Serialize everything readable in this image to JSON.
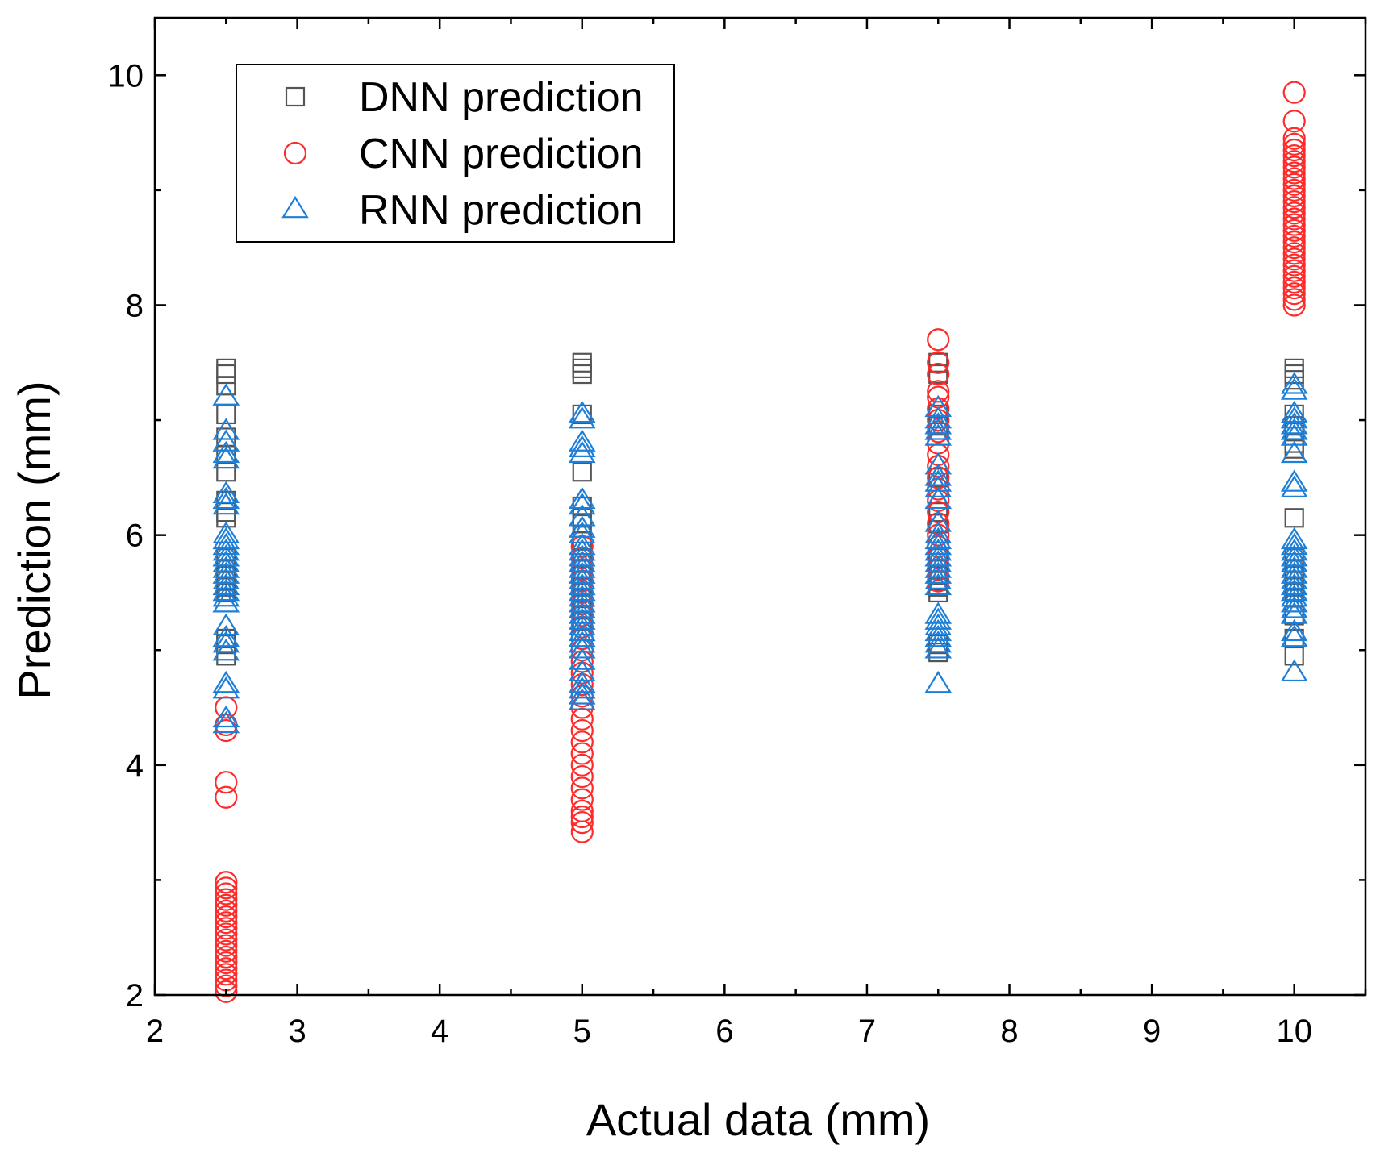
{
  "chart_data": {
    "type": "scatter",
    "xlabel": "Actual data (mm)",
    "ylabel": "Prediction (mm)",
    "xlim": [
      2,
      10.5
    ],
    "ylim": [
      2,
      10.5
    ],
    "x_ticks": [
      "2",
      "3",
      "4",
      "5",
      "6",
      "7",
      "8",
      "9",
      "10"
    ],
    "y_ticks": [
      "2",
      "4",
      "6",
      "8",
      "10"
    ],
    "grid": false,
    "legend_position": "top-left",
    "series": [
      {
        "name": "DNN prediction",
        "marker": "square",
        "color": "#555555",
        "points": [
          {
            "x": 2.5,
            "ys": [
              7.45,
              7.4,
              7.3,
              7.05,
              6.85,
              6.7,
              6.55,
              6.3,
              6.2,
              6.15,
              5.8,
              5.7,
              5.65,
              5.6,
              5.55,
              5.5,
              5.1,
              5.05,
              4.95
            ]
          },
          {
            "x": 5.0,
            "ys": [
              7.5,
              7.45,
              7.4,
              7.05,
              6.55,
              6.25,
              6.15,
              6.1,
              5.95,
              5.8,
              5.7,
              5.65,
              5.6,
              5.55,
              5.5,
              5.45,
              5.35,
              5.25
            ]
          },
          {
            "x": 7.5,
            "ys": [
              7.5,
              7.4,
              7.05,
              6.95,
              6.5,
              6.2,
              6.1,
              5.8,
              5.7,
              5.65,
              5.6,
              5.55,
              5.5,
              5.05,
              4.98
            ]
          },
          {
            "x": 10.0,
            "ys": [
              7.45,
              7.4,
              7.35,
              7.05,
              6.95,
              6.9,
              6.8,
              6.75,
              6.15,
              5.8,
              5.7,
              5.65,
              5.6,
              5.55,
              5.5,
              5.3,
              5.1,
              4.95
            ]
          }
        ]
      },
      {
        "name": "CNN prediction",
        "marker": "circle",
        "color": "#ff2a2a",
        "points": [
          {
            "x": 2.5,
            "ys": [
              4.5,
              4.35,
              4.3,
              3.85,
              3.72,
              2.98,
              2.93,
              2.88,
              2.83,
              2.78,
              2.73,
              2.68,
              2.63,
              2.58,
              2.53,
              2.48,
              2.43,
              2.38,
              2.33,
              2.28,
              2.23,
              2.18,
              2.13,
              2.08,
              2.03
            ]
          },
          {
            "x": 5.0,
            "ys": [
              5.9,
              5.8,
              5.7,
              5.6,
              5.5,
              5.4,
              5.3,
              5.2,
              5.1,
              5.0,
              4.9,
              4.8,
              4.7,
              4.6,
              4.5,
              4.4,
              4.3,
              4.2,
              4.1,
              4.0,
              3.9,
              3.8,
              3.7,
              3.6,
              3.55,
              3.5,
              3.42
            ]
          },
          {
            "x": 7.5,
            "ys": [
              7.7,
              7.5,
              7.4,
              7.25,
              7.2,
              7.1,
              7.0,
              6.9,
              6.8,
              6.7,
              6.6,
              6.5,
              6.4,
              6.3,
              6.2,
              6.1,
              6.0,
              5.9,
              5.8,
              5.7,
              5.6
            ]
          },
          {
            "x": 10.0,
            "ys": [
              9.85,
              9.6,
              9.45,
              9.4,
              9.35,
              9.3,
              9.25,
              9.2,
              9.15,
              9.1,
              9.05,
              9.0,
              8.95,
              8.9,
              8.85,
              8.8,
              8.75,
              8.7,
              8.65,
              8.6,
              8.55,
              8.5,
              8.45,
              8.4,
              8.35,
              8.3,
              8.25,
              8.2,
              8.15,
              8.1,
              8.05,
              8.0
            ]
          }
        ]
      },
      {
        "name": "RNN prediction",
        "marker": "triangle",
        "color": "#1e7fd8",
        "points": [
          {
            "x": 2.5,
            "ys": [
              7.2,
              6.9,
              6.8,
              6.7,
              6.65,
              6.35,
              6.3,
              6.25,
              6.0,
              5.95,
              5.9,
              5.85,
              5.8,
              5.75,
              5.7,
              5.65,
              5.6,
              5.55,
              5.5,
              5.45,
              5.4,
              5.2,
              5.1,
              5.05,
              4.98,
              4.7,
              4.65,
              4.4,
              4.35
            ]
          },
          {
            "x": 5.0,
            "ys": [
              7.05,
              7.0,
              6.8,
              6.75,
              6.7,
              6.3,
              6.25,
              6.15,
              6.05,
              6.0,
              5.9,
              5.85,
              5.8,
              5.75,
              5.7,
              5.65,
              5.6,
              5.55,
              5.5,
              5.45,
              5.4,
              5.35,
              5.3,
              5.25,
              5.2,
              5.15,
              5.1,
              5.05,
              5.0,
              4.9,
              4.8,
              4.7,
              4.65,
              4.6,
              4.55
            ]
          },
          {
            "x": 7.5,
            "ys": [
              7.1,
              7.0,
              6.95,
              6.9,
              6.85,
              6.6,
              6.5,
              6.45,
              6.4,
              6.3,
              6.1,
              6.0,
              5.95,
              5.9,
              5.85,
              5.8,
              5.75,
              5.7,
              5.65,
              5.6,
              5.55,
              5.3,
              5.25,
              5.2,
              5.15,
              5.1,
              5.05,
              5.0,
              4.7
            ]
          },
          {
            "x": 10.0,
            "ys": [
              7.3,
              7.25,
              7.05,
              7.0,
              6.95,
              6.9,
              6.85,
              6.7,
              6.45,
              6.4,
              5.95,
              5.9,
              5.85,
              5.8,
              5.75,
              5.7,
              5.65,
              5.6,
              5.55,
              5.5,
              5.45,
              5.4,
              5.35,
              5.3,
              5.15,
              5.1,
              4.8
            ]
          }
        ]
      }
    ]
  }
}
